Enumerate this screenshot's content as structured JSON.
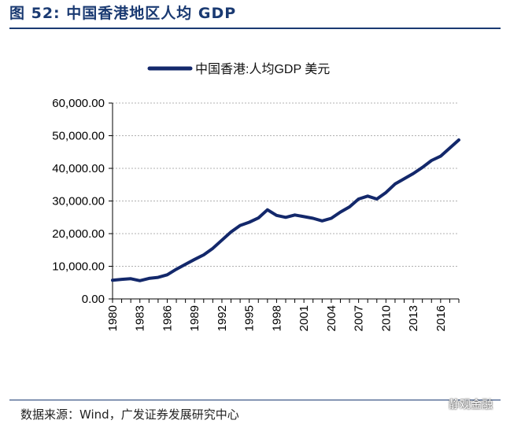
{
  "figure": {
    "title": "图 52:  中国香港地区人均 GDP",
    "source": "数据来源：Wind，广发证券发展研究中心",
    "watermark": "静观金融"
  },
  "colors": {
    "series": "#13286b",
    "title": "#1a3a72",
    "grid": "#b0b0b0"
  },
  "chart_data": {
    "type": "line",
    "title": "",
    "xlabel": "",
    "ylabel": "",
    "legend": "top-center",
    "grid": true,
    "ylim": [
      0,
      60000
    ],
    "xlim": [
      1980,
      2018
    ],
    "yticks": [
      "0.00",
      "10,000.00",
      "20,000.00",
      "30,000.00",
      "40,000.00",
      "50,000.00",
      "60,000.00"
    ],
    "ytick_values": [
      0,
      10000,
      20000,
      30000,
      40000,
      50000,
      60000
    ],
    "xticks": [
      "1980",
      "1983",
      "1986",
      "1989",
      "1992",
      "1995",
      "1998",
      "2001",
      "2004",
      "2007",
      "2010",
      "2013",
      "2016"
    ],
    "xtick_values": [
      1980,
      1983,
      1986,
      1989,
      1992,
      1995,
      1998,
      2001,
      2004,
      2007,
      2010,
      2013,
      2016
    ],
    "series": [
      {
        "name": "中国香港:人均GDP 美元",
        "x": [
          1980,
          1981,
          1982,
          1983,
          1984,
          1985,
          1986,
          1987,
          1988,
          1989,
          1990,
          1991,
          1992,
          1993,
          1994,
          1995,
          1996,
          1997,
          1998,
          1999,
          2000,
          2001,
          2002,
          2003,
          2004,
          2005,
          2006,
          2007,
          2008,
          2009,
          2010,
          2011,
          2012,
          2013,
          2014,
          2015,
          2016,
          2017,
          2018
        ],
        "values": [
          5700,
          6000,
          6200,
          5600,
          6300,
          6600,
          7400,
          9100,
          10600,
          12100,
          13500,
          15500,
          18000,
          20500,
          22500,
          23500,
          24800,
          27300,
          25600,
          25000,
          25700,
          25200,
          24700,
          23900,
          24700,
          26600,
          28200,
          30600,
          31500,
          30600,
          32600,
          35200,
          36800,
          38400,
          40300,
          42400,
          43700,
          46200,
          48700
        ]
      }
    ]
  }
}
